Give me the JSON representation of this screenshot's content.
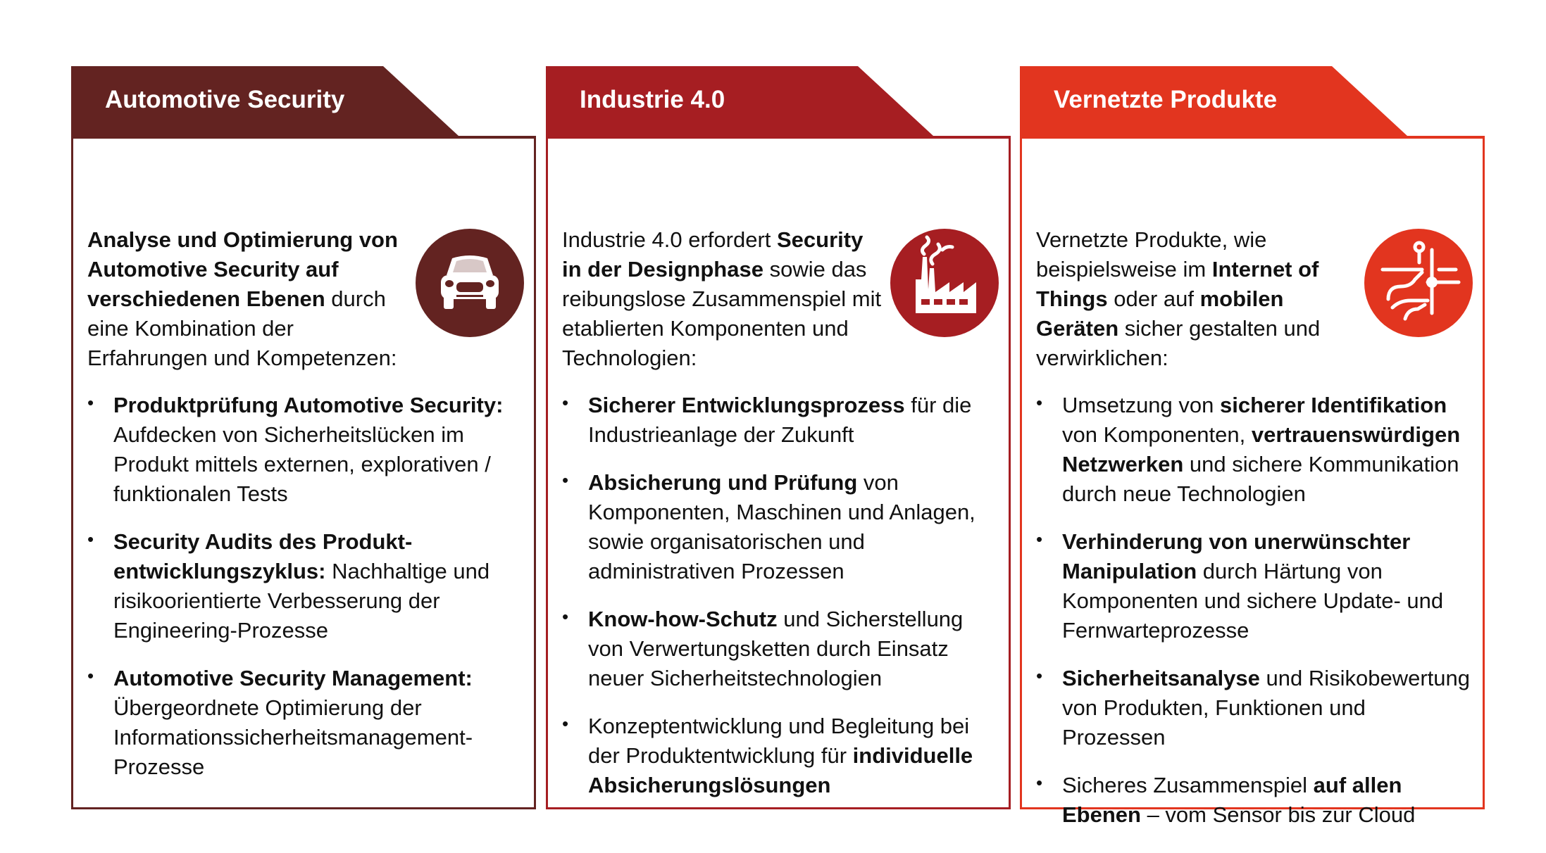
{
  "colors": {
    "automotive": "#632321",
    "industrie": "#a61e22",
    "vernetzt": "#e2351f"
  },
  "panels": [
    {
      "title": "Automotive Security",
      "icon": "car-icon",
      "intro": [
        {
          "t": "Analyse und Optimierung von Automotive Security auf verschiedenen Ebenen",
          "b": true
        },
        {
          "t": " durch eine Kombination der Erfahrungen und Kompetenzen:",
          "b": false
        }
      ],
      "items": [
        [
          {
            "t": "Produktprüfung Automotive Security:",
            "b": true
          },
          {
            "t": " Aufdecken von Sicherheitslücken im Produkt mittels externen, explorativen / funktionalen Tests",
            "b": false
          }
        ],
        [
          {
            "t": "Security Audits des Produkt-entwicklungszyklus:",
            "b": true
          },
          {
            "t": " Nachhaltige und risikoorientierte Verbesserung der Engineering-Prozesse",
            "b": false
          }
        ],
        [
          {
            "t": "Automotive Security Management:",
            "b": true
          },
          {
            "t": " Übergeordnete Optimierung der Informationssicherheitsmanagement-Prozesse",
            "b": false
          }
        ]
      ]
    },
    {
      "title": "Industrie 4.0",
      "icon": "factory-icon",
      "intro": [
        {
          "t": "Industrie 4.0 erfordert ",
          "b": false
        },
        {
          "t": "Security in der Designphase",
          "b": true
        },
        {
          "t": " sowie das reibungslose Zusammenspiel mit etablierten Komponenten und Technologien:",
          "b": false
        }
      ],
      "items": [
        [
          {
            "t": "Sicherer Entwicklungsprozess",
            "b": true
          },
          {
            "t": " für die Industrieanlage der Zukunft",
            "b": false
          }
        ],
        [
          {
            "t": "Absicherung und Prüfung",
            "b": true
          },
          {
            "t": " von Komponenten, Maschinen und Anlagen, sowie organisatorischen und administrativen Prozessen",
            "b": false
          }
        ],
        [
          {
            "t": "Know-how-Schutz",
            "b": true
          },
          {
            "t": " und Sicherstellung von Verwertungsketten durch Einsatz neuer Sicherheitstechnologien",
            "b": false
          }
        ],
        [
          {
            "t": "Konzeptentwicklung und Begleitung bei der Produktentwicklung für ",
            "b": false
          },
          {
            "t": "individuelle Absicherungslösungen",
            "b": true
          }
        ]
      ]
    },
    {
      "title": "Vernetzte Produkte",
      "icon": "circuit-icon",
      "intro": [
        {
          "t": "Vernetzte Produkte, wie beispielsweise im ",
          "b": false
        },
        {
          "t": "Internet of Things",
          "b": true
        },
        {
          "t": " oder auf ",
          "b": false
        },
        {
          "t": "mobilen Geräten",
          "b": true
        },
        {
          "t": " sicher gestalten und verwirklichen:",
          "b": false
        }
      ],
      "items": [
        [
          {
            "t": "Umsetzung von ",
            "b": false
          },
          {
            "t": "sicherer Identifikation",
            "b": true
          },
          {
            "t": " von Komponenten, ",
            "b": false
          },
          {
            "t": "vertrauenswürdigen Netzwerken",
            "b": true
          },
          {
            "t": " und sichere Kommunikation durch neue Technologien",
            "b": false
          }
        ],
        [
          {
            "t": "Verhinderung von unerwünschter Manipulation",
            "b": true
          },
          {
            "t": " durch Härtung von Komponenten und sichere Update- und Fernwarteprozesse",
            "b": false
          }
        ],
        [
          {
            "t": "Sicherheitsanalyse",
            "b": true
          },
          {
            "t": " und Risikobewertung von Produkten, Funktionen und Prozessen",
            "b": false
          }
        ],
        [
          {
            "t": "Sicheres Zusammenspiel ",
            "b": false
          },
          {
            "t": "auf allen Ebenen",
            "b": true
          },
          {
            "t": " – vom Sensor bis zur Cloud",
            "b": false
          }
        ]
      ]
    }
  ]
}
